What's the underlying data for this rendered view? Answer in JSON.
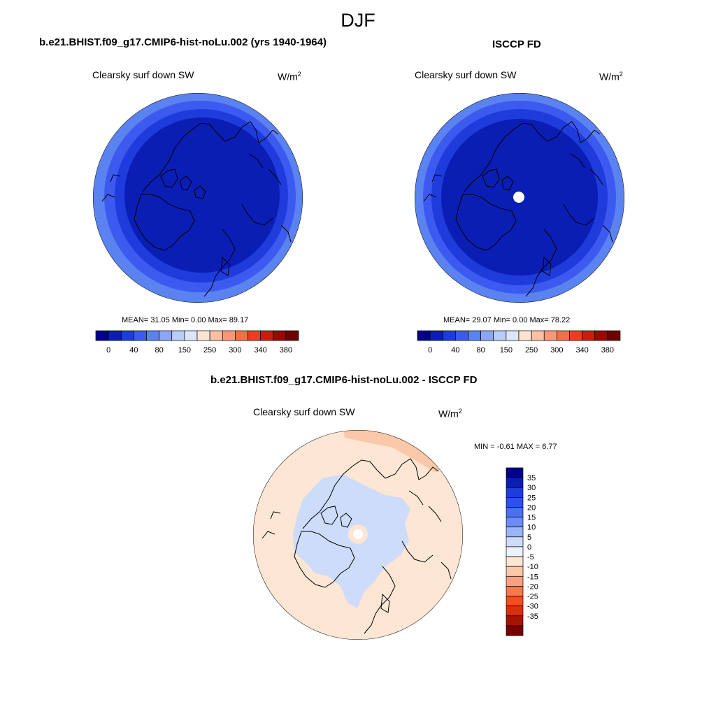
{
  "figure": {
    "title": "DJF"
  },
  "panel_left": {
    "title": "b.e21.BHIST.f09_g17.CMIP6-hist-noLu.002 (yrs 1940-1964)",
    "field_label": "Clearsky surf down SW",
    "units_base": "W/m",
    "units_exp": "2",
    "stats": "MEAN=  31.05  Min=   0.00  Max=  89.17"
  },
  "panel_right": {
    "title": "ISCCP FD",
    "field_label": "Clearsky surf down SW",
    "units_base": "W/m",
    "units_exp": "2",
    "stats": "MEAN=  29.07  Min=   0.00  Max=  78.22"
  },
  "panel_diff": {
    "title": "b.e21.BHIST.f09_g17.CMIP6-hist-noLu.002 - ISCCP FD",
    "field_label": "Clearsky surf down SW",
    "units_base": "W/m",
    "units_exp": "2",
    "stats": "MIN =  -0.61 MAX =   6.77"
  },
  "colorbar_abs": {
    "colors": [
      "#00008c",
      "#0a1eb4",
      "#1e3cdc",
      "#3c5af0",
      "#5a82f0",
      "#8ca5f5",
      "#b9cdfa",
      "#dbe6fb",
      "#fde3d2",
      "#fbc0a4",
      "#f99878",
      "#f56e46",
      "#ee3c1e",
      "#c81e0a",
      "#960a00",
      "#6e0000"
    ],
    "labels": [
      "0",
      "40",
      "80",
      "150",
      "250",
      "300",
      "340",
      "380"
    ]
  },
  "colorbar_diff": {
    "colors": [
      "#00008c",
      "#0a1eb4",
      "#1e3cdc",
      "#2d50f0",
      "#4b6ef5",
      "#6e8cf5",
      "#9bb4f8",
      "#cddcfa",
      "#eef2fb",
      "#fde6d4",
      "#fcc8aa",
      "#fba082",
      "#f87850",
      "#f24e1e",
      "#d7300a",
      "#a51400",
      "#780000"
    ],
    "labels": [
      "35",
      "30",
      "25",
      "20",
      "15",
      "10",
      "5",
      "0",
      "-5",
      "-10",
      "-15",
      "-20",
      "-25",
      "-30",
      "-35"
    ]
  },
  "colors": {
    "abs_band_dark": "#0a1eb4",
    "abs_band_mid": "#1e3cdc",
    "abs_band_light": "#3c5af0",
    "abs_band_outer": "#5a82f0",
    "diff_positive": "#fde6d4",
    "diff_negative": "#cddcfa",
    "diff_high": "#fcc8aa"
  }
}
